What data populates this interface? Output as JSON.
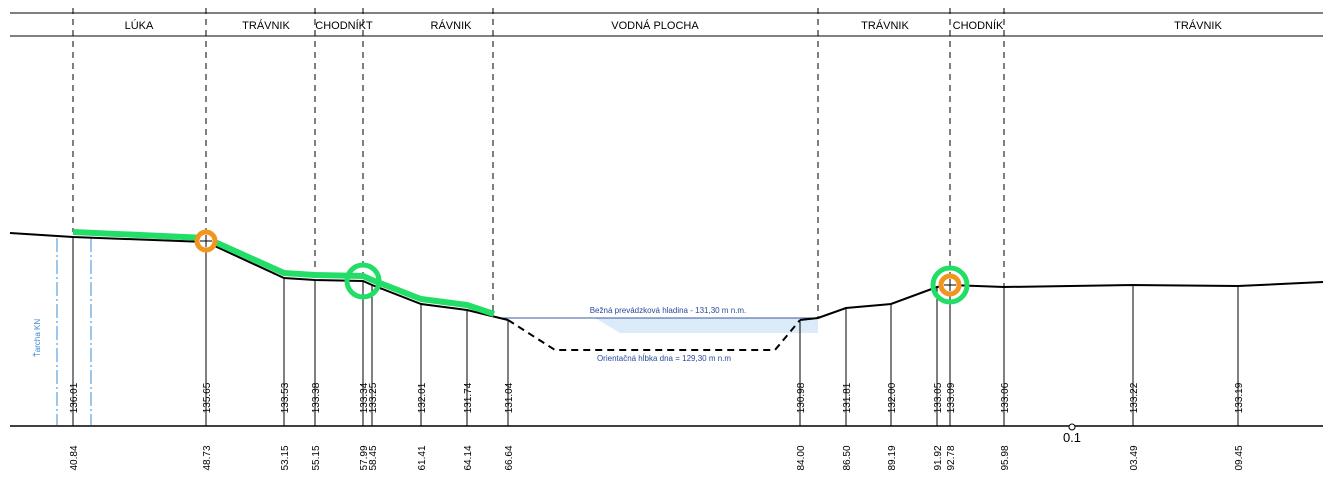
{
  "header": {
    "segments": [
      {
        "label": "LÚKA"
      },
      {
        "label": "TRÁVNIK"
      },
      {
        "label": "CHODNÍKT"
      },
      {
        "label": "RÁVNIK"
      },
      {
        "label": "VODNÁ PLOCHA"
      },
      {
        "label": "TRÁVNIK"
      },
      {
        "label": "CHODNÍK"
      },
      {
        "label": "TRÁVNIK"
      }
    ]
  },
  "profile": {
    "stations": [
      {
        "elevation": "136.01",
        "chainage": "40.84"
      },
      {
        "elevation": "135.65",
        "chainage": "48.73"
      },
      {
        "elevation": "133.53",
        "chainage": "53.15"
      },
      {
        "elevation": "133.38",
        "chainage": "55.15"
      },
      {
        "elevation": "133.34",
        "chainage": "57.99"
      },
      {
        "elevation": "133.25",
        "chainage": "58.45"
      },
      {
        "elevation": "132.01",
        "chainage": "61.41"
      },
      {
        "elevation": "131.74",
        "chainage": "64.14"
      },
      {
        "elevation": "131.04",
        "chainage": "66.64"
      },
      {
        "elevation": "130.98",
        "chainage": "84.00"
      },
      {
        "elevation": "131.81",
        "chainage": "86.50"
      },
      {
        "elevation": "132.00",
        "chainage": "89.19"
      },
      {
        "elevation": "133.05",
        "chainage": "91.92"
      },
      {
        "elevation": "133.09",
        "chainage": "92.78"
      },
      {
        "elevation": "133.06",
        "chainage": "95.98"
      },
      {
        "elevation": "133.22",
        "chainage": "03.49"
      },
      {
        "elevation": "133.19",
        "chainage": "09.45"
      }
    ],
    "annotations": {
      "water_level": "Bežná prevádzková hladina - 131,30 m n.m.",
      "bottom_depth": "Orientačná hĺbka dna = 129,30 m n.m",
      "land_parcel": "Ťarcha KN",
      "km_mark": "0.1"
    }
  },
  "colors": {
    "line": "#000000",
    "highlight_green": "#22dd66",
    "marker_orange": "#f0961e",
    "water_fill": "#dcebfa",
    "water_line": "#3c5aa0",
    "parcel_blue": "#3c8cd2"
  }
}
